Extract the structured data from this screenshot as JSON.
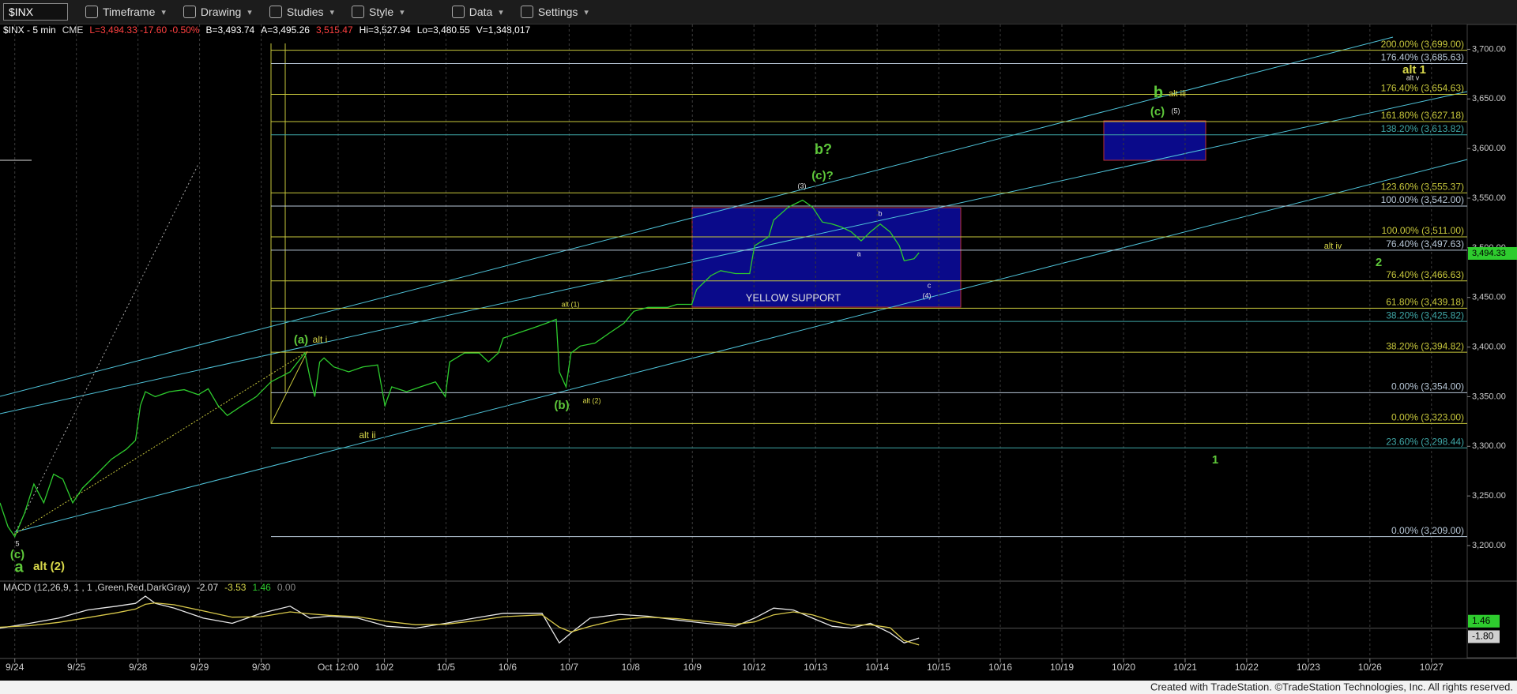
{
  "toolbar": {
    "symbol": "$INX",
    "items": [
      "Timeframe",
      "Drawing",
      "Studies",
      "Style",
      "Data",
      "Settings"
    ]
  },
  "info": [
    "$INX - 5 min",
    "CME",
    "L=3,494.33 -17.60 -0.50%",
    "B=3,493.74",
    "A=3,495.26",
    "3,515.47",
    "Hi=3,527.94",
    "Lo=3,480.55",
    "V=1,348,017"
  ],
  "footer": "Created with TradeStation. ©TradeStation Technologies, Inc. All rights reserved.",
  "chart_data": [
    {
      "type": "line",
      "xlim": [
        -0.24,
        23.58
      ],
      "ylim": [
        3165,
        3725
      ],
      "xticks": [
        {
          "value": 0,
          "label": "9/24"
        },
        {
          "value": 1,
          "label": "9/25"
        },
        {
          "value": 2,
          "label": "9/28"
        },
        {
          "value": 3,
          "label": "9/29"
        },
        {
          "value": 4,
          "label": "9/30"
        },
        {
          "value": 5.25,
          "label": "Oct 12:00"
        },
        {
          "value": 6,
          "label": "10/2"
        },
        {
          "value": 7,
          "label": "10/5"
        },
        {
          "value": 8,
          "label": "10/6"
        },
        {
          "value": 9,
          "label": "10/7"
        },
        {
          "value": 10,
          "label": "10/8"
        },
        {
          "value": 11,
          "label": "10/9"
        },
        {
          "value": 12,
          "label": "10/12"
        },
        {
          "value": 13,
          "label": "10/13"
        },
        {
          "value": 14,
          "label": "10/14"
        },
        {
          "value": 15,
          "label": "10/15"
        },
        {
          "value": 16,
          "label": "10/16"
        },
        {
          "value": 17,
          "label": "10/19"
        },
        {
          "value": 18,
          "label": "10/20"
        },
        {
          "value": 19,
          "label": "10/21"
        },
        {
          "value": 20,
          "label": "10/22"
        },
        {
          "value": 21,
          "label": "10/23"
        },
        {
          "value": 22,
          "label": "10/26"
        },
        {
          "value": 23,
          "label": "10/27"
        }
      ],
      "yticks": [
        {
          "value": 3200,
          "label": "3,200.00"
        },
        {
          "value": 3250,
          "label": "3,250.00"
        },
        {
          "value": 3300,
          "label": "3,300.00"
        },
        {
          "value": 3350,
          "label": "3,350.00"
        },
        {
          "value": 3400,
          "label": "3,400.00"
        },
        {
          "value": 3450,
          "label": "3,450.00"
        },
        {
          "value": 3500,
          "label": "3,500.00"
        },
        {
          "value": 3550,
          "label": "3,550.00"
        },
        {
          "value": 3600,
          "label": "3,600.00"
        },
        {
          "value": 3650,
          "label": "3,650.00"
        },
        {
          "value": 3700,
          "label": "3,700.00"
        }
      ],
      "grid": true,
      "x": [
        -0.24,
        -0.11,
        0,
        0.16,
        0.31,
        0.47,
        0.63,
        0.78,
        0.94,
        1.1,
        1.33,
        1.57,
        1.81,
        1.96,
        2.04,
        2.12,
        2.28,
        2.51,
        2.75,
        2.98,
        3.14,
        3.3,
        3.45,
        3.69,
        3.92,
        4.16,
        4.47,
        4.71,
        4.79,
        4.87,
        4.95,
        5.02,
        5.18,
        5.42,
        5.65,
        5.89,
        6.01,
        6.12,
        6.36,
        6.59,
        6.83,
        6.99,
        7.06,
        7.3,
        7.54,
        7.69,
        7.85,
        7.93,
        8.16,
        8.4,
        8.63,
        8.79,
        8.84,
        8.95,
        9.03,
        9.18,
        9.42,
        9.65,
        9.89,
        10.05,
        10.28,
        10.6,
        10.75,
        10.99,
        11.07,
        11.3,
        11.46,
        11.7,
        11.93,
        12.01,
        12.24,
        12.32,
        12.56,
        12.79,
        12.95,
        13.11,
        13.27,
        13.42,
        13.58,
        13.74,
        13.89,
        14.05,
        14.21,
        14.36,
        14.44,
        14.6,
        14.68
      ],
      "series": [
        {
          "color": "#2ecc2e",
          "values": [
            3243,
            3219,
            3209,
            3233,
            3262,
            3243,
            3272,
            3267,
            3243,
            3258,
            3272,
            3287,
            3297,
            3306,
            3341,
            3355,
            3350,
            3355,
            3357,
            3352,
            3358,
            3341,
            3331,
            3341,
            3350,
            3365,
            3375,
            3394,
            3370,
            3350,
            3385,
            3389,
            3380,
            3375,
            3380,
            3382,
            3341,
            3360,
            3355,
            3360,
            3365,
            3350,
            3385,
            3394,
            3394,
            3385,
            3394,
            3409,
            3414,
            3419,
            3424,
            3428,
            3375,
            3360,
            3394,
            3401,
            3404,
            3414,
            3424,
            3436,
            3440,
            3440,
            3443,
            3443,
            3458,
            3472,
            3477,
            3474,
            3474,
            3502,
            3511,
            3528,
            3541,
            3548,
            3541,
            3526,
            3524,
            3521,
            3516,
            3507,
            3516,
            3524,
            3516,
            3502,
            3487,
            3489,
            3495
          ]
        }
      ],
      "last_price": {
        "value": 3494.33,
        "label": "3,494.33"
      },
      "levels": [
        {
          "value": 3699,
          "label": "200.00% (3,699.00)",
          "color": "#c8c83c"
        },
        {
          "value": 3685.63,
          "label": "176.40% (3,685.63)",
          "color": "#b8c8d8"
        },
        {
          "value": 3654.63,
          "label": "176.40% (3,654.63)",
          "color": "#c8c83c"
        },
        {
          "value": 3627.18,
          "label": "161.80% (3,627.18)",
          "color": "#c8c83c"
        },
        {
          "value": 3613.82,
          "label": "138.20% (3,613.82)",
          "color": "#3fa7a7"
        },
        {
          "value": 3555.37,
          "label": "123.60% (3,555.37)",
          "color": "#c8c83c"
        },
        {
          "value": 3542,
          "label": "100.00% (3,542.00)",
          "color": "#b8c8d8"
        },
        {
          "value": 3511,
          "label": "100.00% (3,511.00)",
          "color": "#c8c83c"
        },
        {
          "value": 3497.63,
          "label": "76.40% (3,497.63)",
          "color": "#b8c8d8"
        },
        {
          "value": 3466.63,
          "label": "76.40% (3,466.63)",
          "color": "#c8c83c"
        },
        {
          "value": 3439.18,
          "label": "61.80% (3,439.18)",
          "color": "#c8c83c"
        },
        {
          "value": 3425.82,
          "label": "38.20% (3,425.82)",
          "color": "#3fa7a7"
        },
        {
          "value": 3394.82,
          "label": "38.20% (3,394.82)",
          "color": "#c8c83c"
        },
        {
          "value": 3354,
          "label": "0.00% (3,354.00)",
          "color": "#b8c8d8"
        },
        {
          "value": 3323,
          "label": "0.00% (3,323.00)",
          "color": "#c8c83c"
        },
        {
          "value": 3298.44,
          "label": "23.60% (3,298.44)",
          "color": "#3fa7a7"
        },
        {
          "value": 3209,
          "label": "0.00% (3,209.00)",
          "color": "#b8c8d8"
        }
      ],
      "annotations": [
        {
          "text": "(a)",
          "color": "#5ec83a"
        },
        {
          "text": "alt i",
          "color": "#d8d84a"
        },
        {
          "text": "alt ii",
          "color": "#d8d84a"
        },
        {
          "text": "alt (1)",
          "color": "#d8d84a"
        },
        {
          "text": "(b)",
          "color": "#5ec83a"
        },
        {
          "text": "alt (2)",
          "color": "#d8d84a"
        },
        {
          "text": "(3)",
          "color": "#e0e0e0"
        },
        {
          "text": "(c)?",
          "color": "#5ec83a"
        },
        {
          "text": "b?",
          "color": "#5ec83a"
        },
        {
          "text": "a",
          "color": "#e0e0e0"
        },
        {
          "text": "b",
          "color": "#e0e0e0"
        },
        {
          "text": "c",
          "color": "#e0e0e0"
        },
        {
          "text": "(4)",
          "color": "#e0e0e0"
        },
        {
          "text": "YELLOW SUPPORT",
          "color": "#e0e0e0"
        },
        {
          "text": "b",
          "color": "#5ec83a"
        },
        {
          "text": "alt iii",
          "color": "#d8d84a"
        },
        {
          "text": "(c)",
          "color": "#5ec83a"
        },
        {
          "text": "(5)",
          "color": "#e0e0e0"
        },
        {
          "text": "alt 1",
          "color": "#d8d84a"
        },
        {
          "text": "alt v",
          "color": "#e0e0e0"
        },
        {
          "text": "alt iv",
          "color": "#d8d84a"
        },
        {
          "text": "2",
          "color": "#5ec83a"
        },
        {
          "text": "1",
          "color": "#5ec83a"
        },
        {
          "text": "5",
          "color": "#e0e0e0"
        },
        {
          "text": "(c)",
          "color": "#5ec83a"
        },
        {
          "text": "a",
          "color": "#5ec83a"
        },
        {
          "text": "alt (2)",
          "color": "#d8d84a"
        }
      ]
    },
    {
      "type": "line",
      "title": "MACD (12,26,9, 1 , 1 ,Green,Red,DarkGray)",
      "readouts": [
        {
          "text": "-2.07",
          "color": "#e0e0e0"
        },
        {
          "text": "-3.53",
          "color": "#d8d84a"
        },
        {
          "text": "1.46",
          "color": "#2ecc2e"
        },
        {
          "text": "0.00",
          "color": "#888888"
        }
      ],
      "xlim": [
        -0.24,
        23.58
      ],
      "ylim": [
        -6.2,
        9.7
      ],
      "x": [
        -0.24,
        0.24,
        0.71,
        1.18,
        1.65,
        1.96,
        2.12,
        2.28,
        2.59,
        3.06,
        3.53,
        4.0,
        4.47,
        4.79,
        5.1,
        5.57,
        6.04,
        6.51,
        6.99,
        7.46,
        7.93,
        8.56,
        8.84,
        9.03,
        9.34,
        9.81,
        10.28,
        10.75,
        11.22,
        11.7,
        12.01,
        12.32,
        12.64,
        12.95,
        13.27,
        13.58,
        13.89,
        14.21,
        14.44,
        14.68
      ],
      "series": [
        {
          "color": "#e8e8e8",
          "values": [
            0,
            1.0,
            2.1,
            3.8,
            4.6,
            5.2,
            6.7,
            5.2,
            4.2,
            2.1,
            1.0,
            3.1,
            4.6,
            2.1,
            2.5,
            2.1,
            0.4,
            0,
            1.0,
            2.1,
            3.1,
            3.1,
            -3.1,
            -1.0,
            2.1,
            2.9,
            2.5,
            1.7,
            1.0,
            0.4,
            2.1,
            4.2,
            3.8,
            2.1,
            0.4,
            0,
            1.0,
            -1.0,
            -3.1,
            -2.07
          ]
        },
        {
          "color": "#d8c84a",
          "values": [
            0.2,
            0.5,
            1.2,
            2.2,
            3.2,
            4.0,
            5.0,
            5.3,
            4.9,
            3.6,
            2.3,
            2.4,
            3.4,
            3.0,
            2.7,
            2.4,
            1.4,
            0.7,
            0.8,
            1.5,
            2.4,
            2.8,
            0.2,
            -0.8,
            0.4,
            1.8,
            2.3,
            2.0,
            1.4,
            0.8,
            1.3,
            2.8,
            3.4,
            2.8,
            1.5,
            0.6,
            0.7,
            0.1,
            -2.6,
            -3.53
          ]
        }
      ],
      "markers": [
        {
          "value": 1.46,
          "label": "1.46",
          "color": "#2ecc2e"
        },
        {
          "value": -1.8,
          "label": "-1.80",
          "color": "#d0d0d0"
        }
      ]
    }
  ]
}
